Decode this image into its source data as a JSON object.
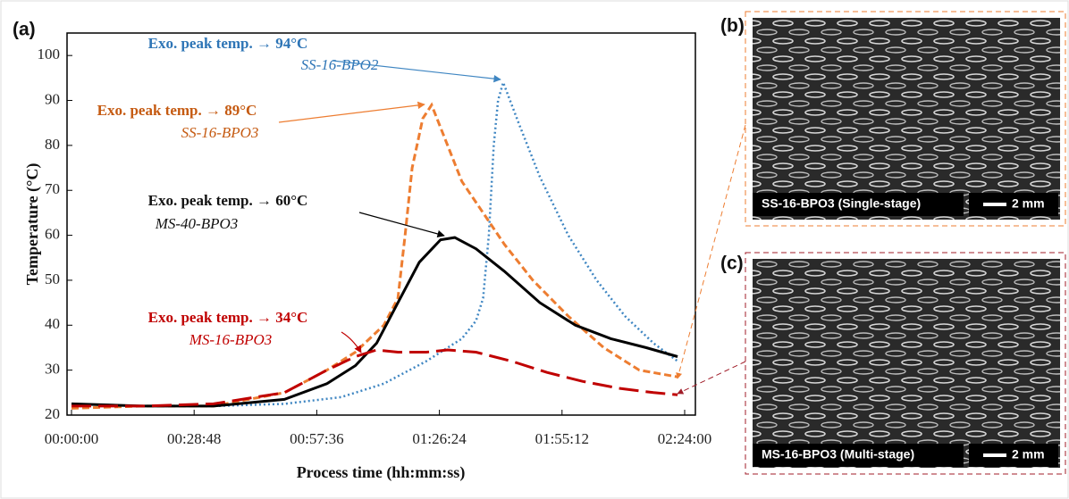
{
  "chart_data": {
    "type": "line",
    "panel_label": "(a)",
    "x_label": "Process time (hh:mm:ss)",
    "y_label": "Temperature (°C)",
    "xlim": [
      0,
      8640
    ],
    "ylim": [
      20,
      105
    ],
    "xticks": [
      {
        "value": 0,
        "label": "00:00:00"
      },
      {
        "value": 1728,
        "label": "00:28:48"
      },
      {
        "value": 3456,
        "label": "00:57:36"
      },
      {
        "value": 5184,
        "label": "01:26:24"
      },
      {
        "value": 6912,
        "label": "01:55:12"
      },
      {
        "value": 8640,
        "label": "02:24:00"
      }
    ],
    "yticks": [
      20,
      30,
      40,
      50,
      60,
      70,
      80,
      90,
      100
    ],
    "series": [
      {
        "name": "SS-16-BPO2",
        "annotation": "Exo. peak temp. → 94°C",
        "color": "#3f86c2",
        "dash": "2 3",
        "x": [
          0,
          1000,
          2000,
          3000,
          3800,
          4400,
          5000,
          5500,
          5700,
          5800,
          5880,
          5950,
          6010,
          6083,
          6300,
          6600,
          7000,
          7400,
          7800,
          8200,
          8540
        ],
        "values": [
          22.5,
          22,
          22,
          22.5,
          24,
          27,
          32,
          37,
          41,
          46,
          60,
          80,
          90,
          94,
          85,
          73,
          60,
          50,
          42,
          36,
          32
        ]
      },
      {
        "name": "SS-16-BPO3",
        "annotation": "Exo. peak temp. → 89°C",
        "color": "#ed7d31",
        "dash": "8 4",
        "x": [
          0,
          1000,
          2000,
          3000,
          3600,
          4000,
          4400,
          4600,
          4700,
          4800,
          4950,
          5075,
          5250,
          5500,
          5800,
          6100,
          6500,
          7000,
          7500,
          8000,
          8540
        ],
        "values": [
          21.5,
          22,
          22,
          25,
          30,
          34,
          40,
          46,
          60,
          75,
          86,
          89,
          82,
          72,
          65,
          58,
          50,
          42,
          35,
          30,
          28.5
        ]
      },
      {
        "name": "MS-40-BPO3",
        "annotation": "Exo. peak temp. → 60°C",
        "color": "#000000",
        "dash": "",
        "x": [
          0,
          1000,
          2000,
          3000,
          3600,
          4000,
          4300,
          4600,
          4900,
          5200,
          5400,
          5700,
          6100,
          6600,
          7100,
          7600,
          8100,
          8540
        ],
        "values": [
          22.5,
          22,
          22,
          23.5,
          27,
          31,
          36,
          45,
          54,
          59,
          59.5,
          57,
          52,
          45,
          40,
          37,
          35,
          33
        ]
      },
      {
        "name": "MS-16-BPO3",
        "annotation": "Exo. peak temp. → 34°C",
        "color": "#c00000",
        "dash": "22 8",
        "x": [
          0,
          1000,
          2000,
          3000,
          3600,
          4000,
          4300,
          4600,
          5000,
          5300,
          5700,
          6200,
          6700,
          7200,
          7700,
          8200,
          8540
        ],
        "values": [
          22,
          22,
          22.5,
          25,
          30,
          33,
          34.5,
          34,
          34,
          34.5,
          34,
          32,
          29.5,
          27.5,
          26,
          25,
          24.5
        ]
      }
    ]
  },
  "panels": [
    {
      "label": "(b)",
      "caption": "SS-16-BPO3 (Single-stage)",
      "scale": "2 mm"
    },
    {
      "label": "(c)",
      "caption": "MS-16-BPO3 (Multi-stage)",
      "scale": "2 mm"
    }
  ]
}
